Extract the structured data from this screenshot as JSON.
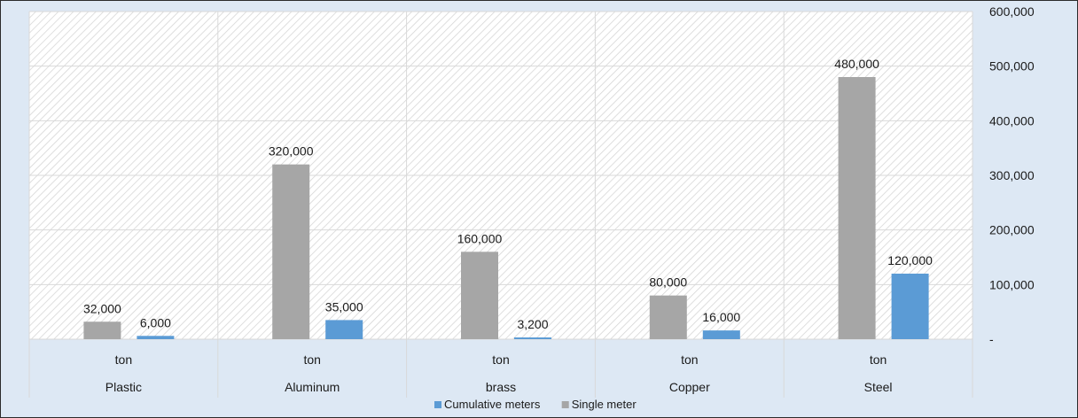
{
  "chart_data": {
    "type": "bar",
    "categories": [
      "Plastic",
      "Aluminum",
      "brass",
      "Copper",
      "Steel"
    ],
    "unit_labels": [
      "ton",
      "ton",
      "ton",
      "ton",
      "ton"
    ],
    "series": [
      {
        "name": "Single meter",
        "values": [
          32000,
          320000,
          160000,
          80000,
          480000
        ],
        "value_labels": [
          "32,000",
          "320,000",
          "160,000",
          "80,000",
          "480,000"
        ],
        "color": "#a6a6a6"
      },
      {
        "name": "Cumulative meters",
        "values": [
          6000,
          35000,
          3200,
          16000,
          120000
        ],
        "value_labels": [
          "6,000",
          "35,000",
          "3,200",
          "16,000",
          "120,000"
        ],
        "color": "#5b9bd5"
      }
    ],
    "y_axis": {
      "side": "right",
      "ylim": [
        0,
        600000
      ],
      "ticks": [
        0,
        100000,
        200000,
        300000,
        400000,
        500000,
        600000
      ],
      "tick_labels": [
        "-",
        "100,000",
        "200,000",
        "300,000",
        "400,000",
        "500,000",
        "600,000"
      ]
    },
    "grid": true,
    "legend": {
      "position": "bottom",
      "entries": [
        {
          "label": "Cumulative meters",
          "color": "#5b9bd5"
        },
        {
          "label": "Single meter",
          "color": "#a6a6a6"
        }
      ]
    }
  }
}
